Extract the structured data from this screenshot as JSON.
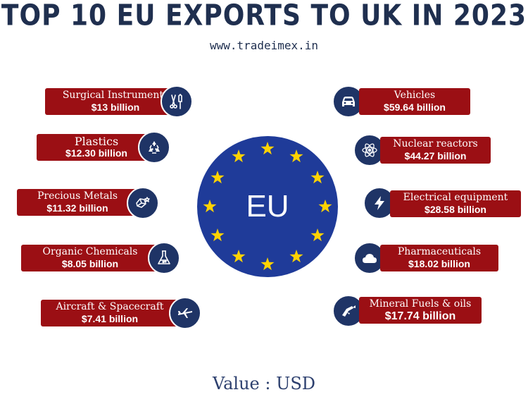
{
  "title": "TOP 10 EU EXPORTS TO UK IN 2023",
  "website": "www.tradeimex.in",
  "center_label": "EU",
  "footer": "Value : USD",
  "colors": {
    "bar": "#9b0f14",
    "icon": "#1f3466",
    "flag": "#1f3b99",
    "star": "#ffd200",
    "title": "#1f2f4f"
  },
  "left_items": [
    {
      "name": "Surgical Instruments",
      "value": "$13 billion",
      "icon": "surgical-tools-icon"
    },
    {
      "name": "Plastics",
      "value": "$12.30 billion",
      "icon": "recycle-icon"
    },
    {
      "name": "Precious Metals",
      "value": "$11.32 billion",
      "icon": "gemstone-icon"
    },
    {
      "name": "Organic Chemicals",
      "value": "$8.05 billion",
      "icon": "flask-icon"
    },
    {
      "name": "Aircraft & Spacecraft",
      "value": "$7.41 billion",
      "icon": "airplane-icon"
    }
  ],
  "right_items": [
    {
      "name": "Vehicles",
      "value": "$59.64 billion",
      "icon": "car-icon"
    },
    {
      "name": "Nuclear reactors",
      "value": "$44.27 billion",
      "icon": "atom-icon"
    },
    {
      "name": "Electrical equipment",
      "value": "$28.58 billion",
      "icon": "lightning-icon"
    },
    {
      "name": "Pharmaceuticals",
      "value": "$18.02 billion",
      "icon": "cloud-icon"
    },
    {
      "name": "Mineral Fuels & oils",
      "value": "$17.74 billion",
      "icon": "fuel-nozzle-icon"
    }
  ]
}
